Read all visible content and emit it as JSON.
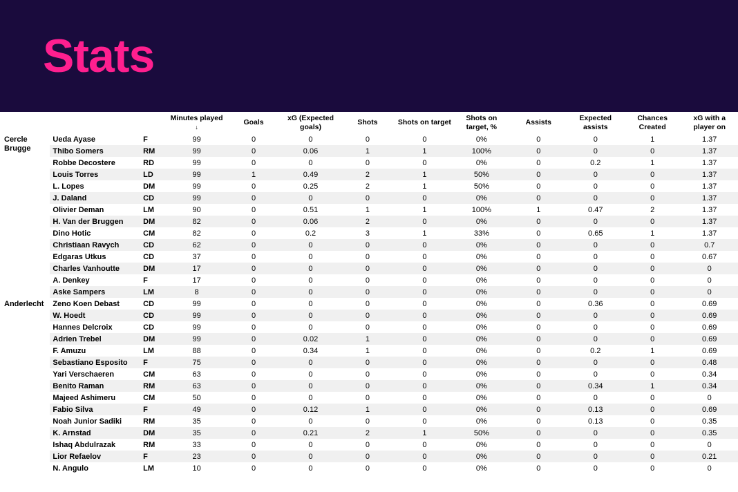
{
  "title": "Stats",
  "header_bg": "#1a0b3d",
  "title_color": "#ff1f8f",
  "row_even_bg": "#ffffff",
  "row_odd_bg": "#f0f0f0",
  "columns": [
    "Minutes played",
    "Goals",
    "xG (Expected goals)",
    "Shots",
    "Shots on target",
    "Shots on target, %",
    "Assists",
    "Expected assists",
    "Chances Created",
    "xG with a player on"
  ],
  "sorted_column_index": 0,
  "teams": [
    {
      "name": "Cercle Brugge",
      "players": [
        {
          "name": "Ueda Ayase",
          "pos": "F",
          "stats": [
            "99",
            "0",
            "0",
            "0",
            "0",
            "0%",
            "0",
            "0",
            "1",
            "1.37"
          ]
        },
        {
          "name": "Thibo Somers",
          "pos": "RM",
          "stats": [
            "99",
            "0",
            "0.06",
            "1",
            "1",
            "100%",
            "0",
            "0",
            "0",
            "1.37"
          ]
        },
        {
          "name": "Robbe Decostere",
          "pos": "RD",
          "stats": [
            "99",
            "0",
            "0",
            "0",
            "0",
            "0%",
            "0",
            "0.2",
            "1",
            "1.37"
          ]
        },
        {
          "name": "Louis Torres",
          "pos": "LD",
          "stats": [
            "99",
            "1",
            "0.49",
            "2",
            "1",
            "50%",
            "0",
            "0",
            "0",
            "1.37"
          ]
        },
        {
          "name": "L. Lopes",
          "pos": "DM",
          "stats": [
            "99",
            "0",
            "0.25",
            "2",
            "1",
            "50%",
            "0",
            "0",
            "0",
            "1.37"
          ]
        },
        {
          "name": "J. Daland",
          "pos": "CD",
          "stats": [
            "99",
            "0",
            "0",
            "0",
            "0",
            "0%",
            "0",
            "0",
            "0",
            "1.37"
          ]
        },
        {
          "name": "Olivier Deman",
          "pos": "LM",
          "stats": [
            "90",
            "0",
            "0.51",
            "1",
            "1",
            "100%",
            "1",
            "0.47",
            "2",
            "1.37"
          ]
        },
        {
          "name": "H. Van der Bruggen",
          "pos": "DM",
          "stats": [
            "82",
            "0",
            "0.06",
            "2",
            "0",
            "0%",
            "0",
            "0",
            "0",
            "1.37"
          ]
        },
        {
          "name": "Dino Hotic",
          "pos": "CM",
          "stats": [
            "82",
            "0",
            "0.2",
            "3",
            "1",
            "33%",
            "0",
            "0.65",
            "1",
            "1.37"
          ]
        },
        {
          "name": "Christiaan Ravych",
          "pos": "CD",
          "stats": [
            "62",
            "0",
            "0",
            "0",
            "0",
            "0%",
            "0",
            "0",
            "0",
            "0.7"
          ]
        },
        {
          "name": "Edgaras Utkus",
          "pos": "CD",
          "stats": [
            "37",
            "0",
            "0",
            "0",
            "0",
            "0%",
            "0",
            "0",
            "0",
            "0.67"
          ]
        },
        {
          "name": "Charles Vanhoutte",
          "pos": "DM",
          "stats": [
            "17",
            "0",
            "0",
            "0",
            "0",
            "0%",
            "0",
            "0",
            "0",
            "0"
          ]
        },
        {
          "name": "A. Denkey",
          "pos": "F",
          "stats": [
            "17",
            "0",
            "0",
            "0",
            "0",
            "0%",
            "0",
            "0",
            "0",
            "0"
          ]
        },
        {
          "name": "Aske Sampers",
          "pos": "LM",
          "stats": [
            "8",
            "0",
            "0",
            "0",
            "0",
            "0%",
            "0",
            "0",
            "0",
            "0"
          ]
        }
      ]
    },
    {
      "name": "Anderlecht",
      "players": [
        {
          "name": "Zeno Koen Debast",
          "pos": "CD",
          "stats": [
            "99",
            "0",
            "0",
            "0",
            "0",
            "0%",
            "0",
            "0.36",
            "0",
            "0.69"
          ]
        },
        {
          "name": "W. Hoedt",
          "pos": "CD",
          "stats": [
            "99",
            "0",
            "0",
            "0",
            "0",
            "0%",
            "0",
            "0",
            "0",
            "0.69"
          ]
        },
        {
          "name": "Hannes Delcroix",
          "pos": "CD",
          "stats": [
            "99",
            "0",
            "0",
            "0",
            "0",
            "0%",
            "0",
            "0",
            "0",
            "0.69"
          ]
        },
        {
          "name": "Adrien Trebel",
          "pos": "DM",
          "stats": [
            "99",
            "0",
            "0.02",
            "1",
            "0",
            "0%",
            "0",
            "0",
            "0",
            "0.69"
          ]
        },
        {
          "name": "F. Amuzu",
          "pos": "LM",
          "stats": [
            "88",
            "0",
            "0.34",
            "1",
            "0",
            "0%",
            "0",
            "0.2",
            "1",
            "0.69"
          ]
        },
        {
          "name": "Sebastiano Esposito",
          "pos": "F",
          "stats": [
            "75",
            "0",
            "0",
            "0",
            "0",
            "0%",
            "0",
            "0",
            "0",
            "0.48"
          ]
        },
        {
          "name": "Yari Verschaeren",
          "pos": "CM",
          "stats": [
            "63",
            "0",
            "0",
            "0",
            "0",
            "0%",
            "0",
            "0",
            "0",
            "0.34"
          ]
        },
        {
          "name": "Benito Raman",
          "pos": "RM",
          "stats": [
            "63",
            "0",
            "0",
            "0",
            "0",
            "0%",
            "0",
            "0.34",
            "1",
            "0.34"
          ]
        },
        {
          "name": "Majeed Ashimeru",
          "pos": "CM",
          "stats": [
            "50",
            "0",
            "0",
            "0",
            "0",
            "0%",
            "0",
            "0",
            "0",
            "0"
          ]
        },
        {
          "name": "Fabio Silva",
          "pos": "F",
          "stats": [
            "49",
            "0",
            "0.12",
            "1",
            "0",
            "0%",
            "0",
            "0.13",
            "0",
            "0.69"
          ]
        },
        {
          "name": "Noah Junior Sadiki",
          "pos": "RM",
          "stats": [
            "35",
            "0",
            "0",
            "0",
            "0",
            "0%",
            "0",
            "0.13",
            "0",
            "0.35"
          ]
        },
        {
          "name": "K. Arnstad",
          "pos": "DM",
          "stats": [
            "35",
            "0",
            "0.21",
            "2",
            "1",
            "50%",
            "0",
            "0",
            "0",
            "0.35"
          ]
        },
        {
          "name": "Ishaq Abdulrazak",
          "pos": "RM",
          "stats": [
            "33",
            "0",
            "0",
            "0",
            "0",
            "0%",
            "0",
            "0",
            "0",
            "0"
          ]
        },
        {
          "name": "Lior Refaelov",
          "pos": "F",
          "stats": [
            "23",
            "0",
            "0",
            "0",
            "0",
            "0%",
            "0",
            "0",
            "0",
            "0.21"
          ]
        },
        {
          "name": "N. Angulo",
          "pos": "LM",
          "stats": [
            "10",
            "0",
            "0",
            "0",
            "0",
            "0%",
            "0",
            "0",
            "0",
            "0"
          ]
        }
      ]
    }
  ]
}
